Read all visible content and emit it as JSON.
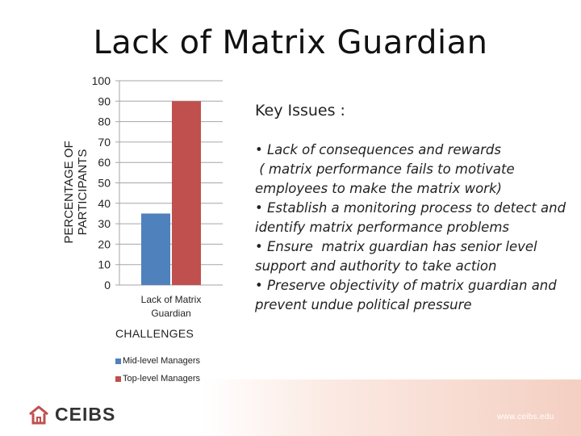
{
  "chart_data": {
    "type": "bar",
    "title": "Lack of Matrix Guardian",
    "ylabel": "PERCENTAGE OF PARTICIPANTS",
    "ylabel_lines": [
      "PERCENTAGE OF",
      "PARTICIPANTS"
    ],
    "xlabel": "CHALLENGES",
    "categories": [
      "Lack of Matrix Guardian"
    ],
    "category_label_lines": [
      "Lack of Matrix",
      "Guardian"
    ],
    "series": [
      {
        "name": "Mid-level Managers",
        "values": [
          35
        ],
        "color": "#4f81bd"
      },
      {
        "name": "Top-level Managers",
        "values": [
          90
        ],
        "color": "#c0504d"
      }
    ],
    "ylim": [
      0,
      100
    ],
    "yticks": [
      "0",
      "10",
      "20",
      "30",
      "40",
      "50",
      "60",
      "70",
      "80",
      "90",
      "100"
    ],
    "grid": true,
    "legend": "bottom-left"
  },
  "issues": {
    "heading": "Key Issues :",
    "items": [
      "• Lack of consequences and rewards",
      " ( matrix performance fails to motivate employees to make the matrix work)",
      "• Establish a monitoring process to detect and identify matrix performance problems",
      "• Ensure  matrix guardian has senior level support and authority to take action",
      "• Preserve objectivity of matrix guardian and prevent undue political pressure"
    ]
  },
  "footer": {
    "logo_text": "CEIBS",
    "logo_icon": "house-icon",
    "url": "www.ceibs.edu"
  }
}
